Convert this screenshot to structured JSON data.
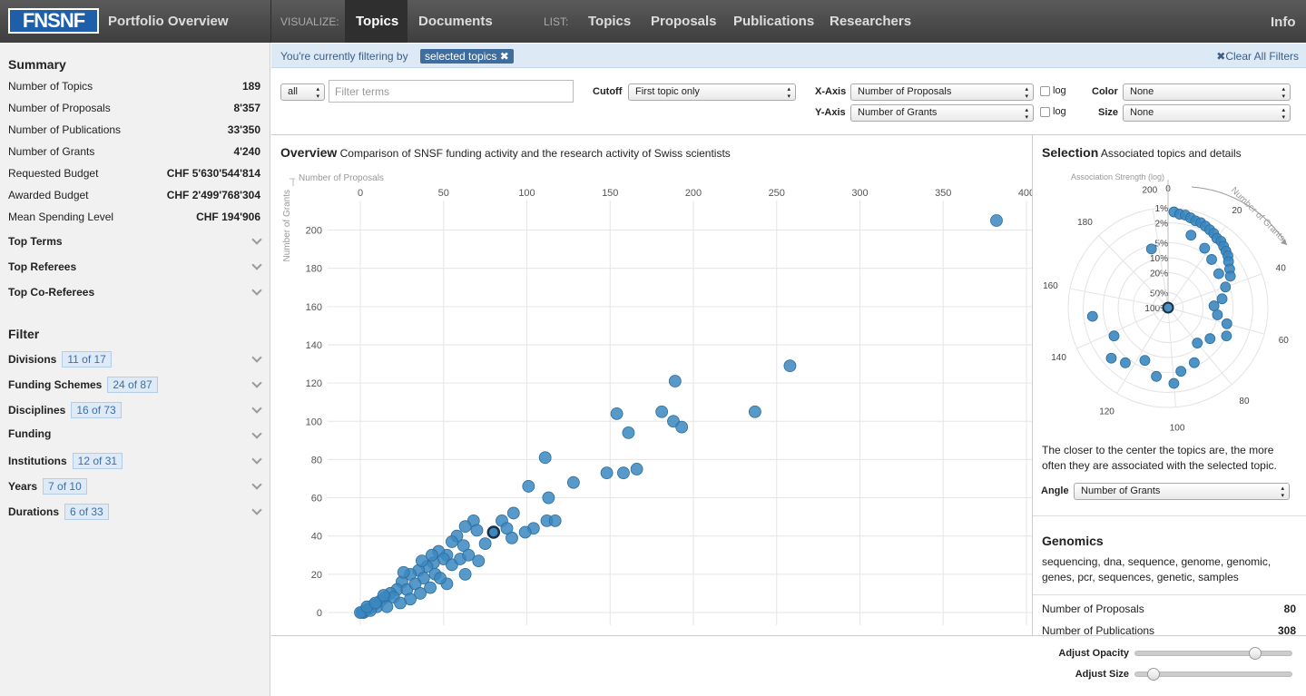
{
  "nav": {
    "logo": "FNSNF",
    "title": "Portfolio Overview",
    "visualize_label": "VISUALIZE:",
    "visualize": [
      "Topics",
      "Documents"
    ],
    "list_label": "LIST:",
    "list": [
      "Topics",
      "Proposals",
      "Publications",
      "Researchers"
    ],
    "info": "Info"
  },
  "sidebar": {
    "summary_title": "Summary",
    "summary": [
      {
        "label": "Number of Topics",
        "value": 189
      },
      {
        "label": "Number of Proposals",
        "value": "8'357"
      },
      {
        "label": "Number of Publications",
        "value": "33'350"
      },
      {
        "label": "Number of Grants",
        "value": "4'240"
      },
      {
        "label": "Requested Budget",
        "value": "CHF 5'630'544'814"
      },
      {
        "label": "Awarded Budget",
        "value": "CHF 2'499'768'304"
      },
      {
        "label": "Mean Spending Level",
        "value": "CHF 194'906"
      }
    ],
    "sections": [
      "Top Terms",
      "Top Referees",
      "Top Co-Referees"
    ],
    "filter_title": "Filter",
    "filters": [
      {
        "label": "Divisions",
        "badge": "11 of 17"
      },
      {
        "label": "Funding Schemes",
        "badge": "24 of 87"
      },
      {
        "label": "Disciplines",
        "badge": "16 of 73"
      },
      {
        "label": "Funding"
      },
      {
        "label": "Institutions",
        "badge": "12 of 31"
      },
      {
        "label": "Years",
        "badge": "7 of 10"
      },
      {
        "label": "Durations",
        "badge": "6 of 33"
      }
    ]
  },
  "filterbar": {
    "text": "You're currently filtering by",
    "tag": "selected topics",
    "clear": "Clear All Filters"
  },
  "controls": {
    "scope": "all",
    "search_placeholder": "Filter terms",
    "cutoff_label": "Cutoff",
    "cutoff": "First topic only",
    "x_axis_label": "X-Axis",
    "x_axis": "Number of Proposals",
    "x_log_label": "log",
    "y_axis_label": "Y-Axis",
    "y_axis": "Number of Grants",
    "y_log_label": "log",
    "color_label": "Color",
    "color": "None",
    "size_label": "Size",
    "size": "None"
  },
  "chart_data": [
    {
      "type": "scatter",
      "title": "Overview",
      "subtitle": "Comparison of SNSF funding activity and the research activity of Swiss scientists",
      "x_label": "Number of Proposals",
      "y_label": "Number of Grants",
      "color": "#3a87c0",
      "x": [
        382,
        258,
        237,
        189,
        181,
        188,
        193,
        154,
        161,
        148,
        158,
        166,
        111,
        128,
        101,
        113,
        112,
        117,
        104,
        92,
        99,
        91,
        68,
        70,
        63,
        58,
        55,
        62,
        52,
        47,
        50,
        44,
        40,
        35,
        38,
        30,
        25,
        22,
        18,
        15,
        12,
        8,
        5,
        3,
        2,
        1,
        0,
        10,
        20,
        28,
        33,
        45,
        55,
        60,
        65,
        75,
        71,
        63,
        52,
        48,
        42,
        36,
        30,
        24,
        16,
        6,
        4,
        9,
        14,
        26,
        37,
        43,
        85,
        88
      ],
      "y": [
        205,
        129,
        105,
        121,
        105,
        100,
        97,
        104,
        94,
        73,
        73,
        75,
        81,
        68,
        66,
        60,
        48,
        48,
        44,
        52,
        42,
        39,
        48,
        43,
        45,
        40,
        37,
        35,
        30,
        32,
        28,
        26,
        24,
        22,
        18,
        20,
        16,
        12,
        10,
        8,
        6,
        4,
        2,
        1,
        0,
        0,
        0,
        3,
        8,
        12,
        15,
        20,
        25,
        28,
        30,
        36,
        27,
        20,
        15,
        18,
        13,
        10,
        7,
        5,
        3,
        1,
        3,
        5,
        9,
        21,
        27,
        30,
        48,
        44
      ],
      "selected": {
        "x": 80,
        "y": 42
      },
      "xlim": [
        0,
        400
      ],
      "xticks": [
        0,
        50,
        100,
        150,
        200,
        250,
        300,
        350,
        400
      ],
      "ylim": [
        0,
        205
      ],
      "yticks": [
        0,
        20,
        40,
        60,
        80,
        100,
        120,
        140,
        160,
        180,
        200
      ],
      "grid": true
    },
    {
      "type": "polar",
      "title": "Selection",
      "subtitle": "Associated topics and details",
      "r_label": "Association Strength (log)",
      "angle_axis_label": "Number of Grants",
      "color": "#3a87c0",
      "angle": [
        2,
        4,
        6,
        8,
        10,
        12,
        14,
        16,
        18,
        20,
        22,
        24,
        26,
        28,
        30,
        33,
        36,
        10,
        18,
        24,
        32,
        40,
        46,
        50,
        56,
        60,
        66,
        72,
        80,
        88,
        96,
        100,
        108,
        116,
        124,
        130,
        138,
        150,
        196,
        80
      ],
      "r": [
        1.2,
        1.3,
        1.3,
        1.4,
        1.5,
        1.5,
        1.6,
        1.7,
        1.8,
        2,
        2,
        2.2,
        2.4,
        2.6,
        3,
        3.5,
        4,
        3,
        4,
        5,
        6,
        6,
        8,
        12,
        10,
        6,
        5,
        9,
        12,
        6,
        5,
        3,
        4,
        7,
        4,
        3,
        6,
        3,
        6,
        100
      ],
      "anglelim": [
        0,
        205
      ],
      "angleticks": [
        0,
        20,
        40,
        60,
        80,
        100,
        120,
        140,
        160,
        180,
        200
      ],
      "rlim": [
        1,
        100
      ],
      "log": true,
      "rticks": [
        {
          "value": 1,
          "label": "1%"
        },
        {
          "value": 2,
          "label": "2%"
        },
        {
          "value": 5,
          "label": "5%"
        },
        {
          "value": 10,
          "label": "10%"
        },
        {
          "value": 20,
          "label": "20%"
        },
        {
          "value": 50,
          "label": "50%"
        },
        {
          "value": 100,
          "label": "100%"
        }
      ],
      "caption": "The closer to the center the topics are, the more often they are associated with the selected topic.",
      "angle_label": "Angle",
      "angle_select": "Number of Grants"
    }
  ],
  "details": {
    "title": "Genomics",
    "terms": "sequencing, dna, sequence, genome, genomic, genes, pcr, sequences, genetic, samples",
    "rows": [
      {
        "label": "Number of Proposals",
        "value": 80
      },
      {
        "label": "Number of Publications",
        "value": 308
      }
    ]
  },
  "footer": {
    "opacity": "Adjust Opacity",
    "size": "Adjust Size"
  }
}
